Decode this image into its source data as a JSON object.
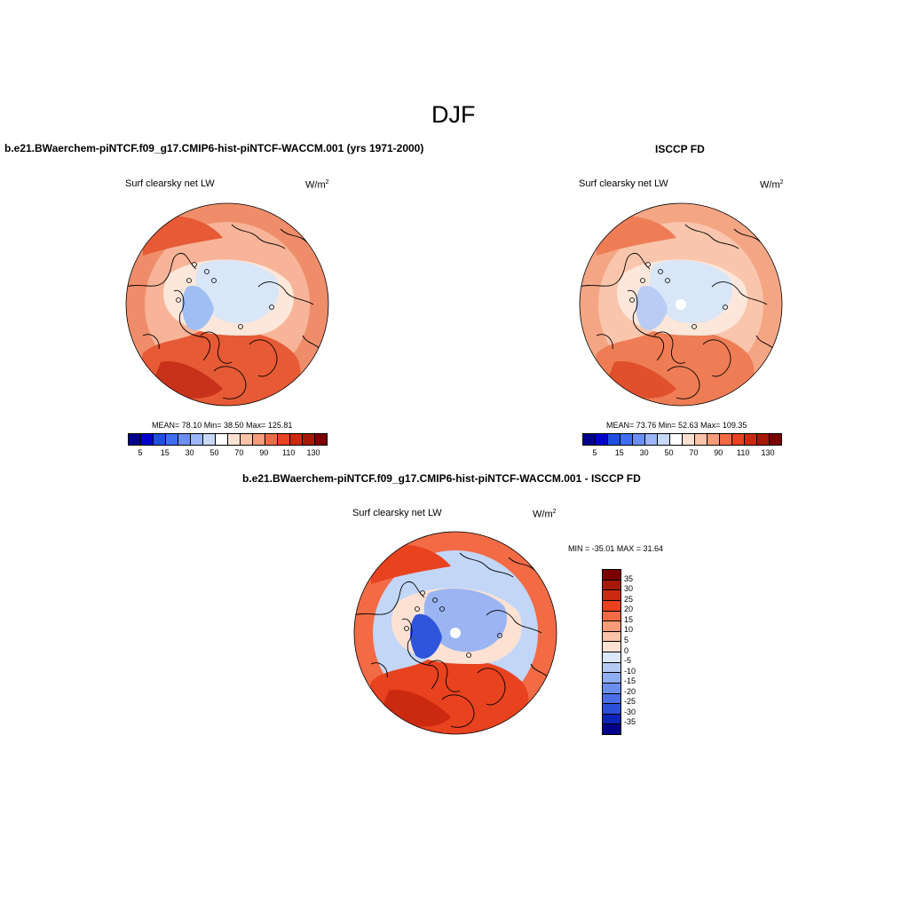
{
  "figure": {
    "title": "DJF"
  },
  "panels": {
    "model": {
      "header": "b.e21.BWaerchem-piNTCF.f09_g17.CMIP6-hist-piNTCF-WACCM.001 (yrs 1971-2000)",
      "field_label": "Surf clearsky net LW",
      "units_base": "W/m",
      "units_exp": "2",
      "stats": "MEAN=  78.10  Min=  38.50  Max= 125.81"
    },
    "obs": {
      "header": "ISCCP FD",
      "field_label": "Surf clearsky net LW",
      "units_base": "W/m",
      "units_exp": "2",
      "stats": "MEAN=  73.76  Min=  52.63  Max= 109.35"
    },
    "diff": {
      "header": "b.e21.BWaerchem-piNTCF.f09_g17.CMIP6-hist-piNTCF-WACCM.001 - ISCCP FD",
      "field_label": "Surf clearsky net LW",
      "units_base": "W/m",
      "units_exp": "2",
      "stats": "MIN = -35.01 MAX =  31.64"
    }
  },
  "colorbar_abs": {
    "colors": [
      "#00008b",
      "#0000cd",
      "#1f4fe0",
      "#3f6ff0",
      "#6b8ff5",
      "#9bb5f7",
      "#c7d8f8",
      "#ffffff",
      "#fde2d3",
      "#fbc3a8",
      "#f79b78",
      "#f26b45",
      "#e8421f",
      "#cc2a10",
      "#a61a05",
      "#7a0000"
    ],
    "ticks": [
      "5",
      "15",
      "30",
      "50",
      "70",
      "90",
      "110",
      "130"
    ]
  },
  "colorbar_diff": {
    "colors": [
      "#7a0000",
      "#a61a05",
      "#cc2a10",
      "#e8421f",
      "#f26b45",
      "#f79b78",
      "#fbc3a8",
      "#fde2d3",
      "#dbe8f9",
      "#b5cbf5",
      "#8fadf2",
      "#6b8ff0",
      "#4a6fe8",
      "#2b4fd8",
      "#0a25b5",
      "#00008b"
    ],
    "ticks": [
      "35",
      "30",
      "25",
      "20",
      "15",
      "10",
      "5",
      "0",
      "-5",
      "-10",
      "-15",
      "-20",
      "-25",
      "-30",
      "-35"
    ]
  },
  "map_palettes": {
    "model": {
      "base": "#f7b498",
      "ring": "#ef8d6a",
      "warm": "#e65a35",
      "hot": "#c8321a",
      "cool": "#fde7da",
      "ice": "#d8e6f8",
      "cold": "#9fbef3"
    },
    "obs": {
      "base": "#f9c5ac",
      "ring": "#f4a684",
      "warm": "#ee7d55",
      "hot": "#e0502d",
      "cool": "#fde7da",
      "ice": "#d8e6f8",
      "cold": "#b9cdf4"
    },
    "diff": {
      "base": "#c2d6f8",
      "ring": "#f26b45",
      "warm": "#e8421f",
      "hot": "#cc2a10",
      "cool": "#fde2d3",
      "ice": "#9bb5f2",
      "cold": "#2f55dc"
    }
  }
}
